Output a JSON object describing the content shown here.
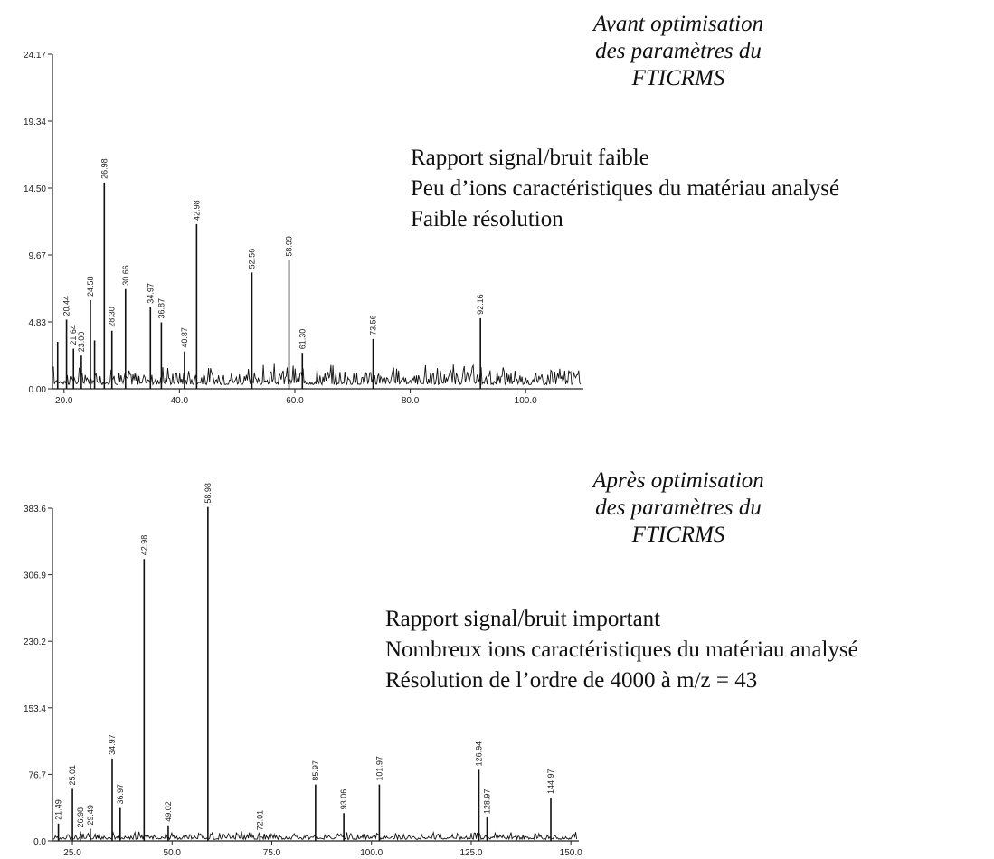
{
  "spectra": [
    {
      "caption": [
        "Avant optimisation",
        "des paramètres du",
        "FTICRMS"
      ],
      "notes": [
        "Rapport signal/bruit faible",
        "Peu d’ions caractéristiques du matériau analysé",
        "Faible résolution"
      ]
    },
    {
      "caption": [
        "Après optimisation",
        "des paramètres du",
        "FTICRMS"
      ],
      "notes": [
        "Rapport signal/bruit important",
        "Nombreux ions caractéristiques du matériau analysé",
        "Résolution de l’ordre de 4000 à m/z = 43"
      ]
    }
  ],
  "chart_data": [
    {
      "type": "bar",
      "title": "",
      "xlim": [
        18,
        110
      ],
      "ylim": [
        0,
        24.17
      ],
      "xticks": [
        "20.0",
        "40.0",
        "60.0",
        "80.0",
        "100.0"
      ],
      "yticks": [
        "0.00",
        "4.83",
        "9.67",
        "14.50",
        "19.34",
        "24.17"
      ],
      "noise_level": 1.0,
      "peaks": [
        {
          "x": 18.9,
          "y": 3.4,
          "label": ""
        },
        {
          "x": 20.44,
          "y": 5.0,
          "label": "20.44"
        },
        {
          "x": 21.64,
          "y": 2.9,
          "label": "21.64"
        },
        {
          "x": 23.0,
          "y": 2.4,
          "label": "23.00"
        },
        {
          "x": 24.58,
          "y": 6.4,
          "label": "24.58"
        },
        {
          "x": 25.3,
          "y": 3.5,
          "label": ""
        },
        {
          "x": 26.98,
          "y": 14.9,
          "label": "26.98"
        },
        {
          "x": 28.3,
          "y": 4.2,
          "label": "28.30"
        },
        {
          "x": 30.66,
          "y": 7.2,
          "label": "30.66"
        },
        {
          "x": 34.97,
          "y": 5.9,
          "label": "34.97"
        },
        {
          "x": 36.87,
          "y": 4.8,
          "label": "36.87"
        },
        {
          "x": 40.87,
          "y": 2.7,
          "label": "40.87"
        },
        {
          "x": 42.98,
          "y": 11.9,
          "label": "42.98"
        },
        {
          "x": 52.56,
          "y": 8.4,
          "label": "52.56"
        },
        {
          "x": 58.99,
          "y": 9.3,
          "label": "58.99"
        },
        {
          "x": 61.3,
          "y": 2.6,
          "label": "61.30"
        },
        {
          "x": 73.56,
          "y": 3.6,
          "label": "73.56"
        },
        {
          "x": 92.16,
          "y": 5.1,
          "label": "92.16"
        }
      ]
    },
    {
      "type": "bar",
      "title": "",
      "xlim": [
        20,
        152
      ],
      "ylim": [
        0,
        383.6
      ],
      "xticks": [
        "25.0",
        "50.0",
        "75.0",
        "100.0",
        "125.0",
        "150.0"
      ],
      "yticks": [
        "0.0",
        "76.7",
        "153.4",
        "230.2",
        "306.9",
        "383.6"
      ],
      "noise_level": 6,
      "peaks": [
        {
          "x": 21.49,
          "y": 20,
          "label": "21.49"
        },
        {
          "x": 25.01,
          "y": 60,
          "label": "25.01"
        },
        {
          "x": 26.98,
          "y": 11,
          "label": "26.98"
        },
        {
          "x": 29.49,
          "y": 14,
          "label": "29.49"
        },
        {
          "x": 34.97,
          "y": 95,
          "label": "34.97"
        },
        {
          "x": 36.97,
          "y": 38,
          "label": "36.97"
        },
        {
          "x": 42.98,
          "y": 325,
          "label": "42.98"
        },
        {
          "x": 49.02,
          "y": 18,
          "label": "49.02"
        },
        {
          "x": 58.98,
          "y": 385,
          "label": "58.98"
        },
        {
          "x": 72.01,
          "y": 8,
          "label": "72.01"
        },
        {
          "x": 85.97,
          "y": 65,
          "label": "85.97"
        },
        {
          "x": 93.06,
          "y": 32,
          "label": "93.06"
        },
        {
          "x": 101.97,
          "y": 65,
          "label": "101.97"
        },
        {
          "x": 126.94,
          "y": 82,
          "label": "126.94"
        },
        {
          "x": 128.97,
          "y": 27,
          "label": "128.97"
        },
        {
          "x": 144.97,
          "y": 50,
          "label": "144.97"
        }
      ]
    }
  ]
}
